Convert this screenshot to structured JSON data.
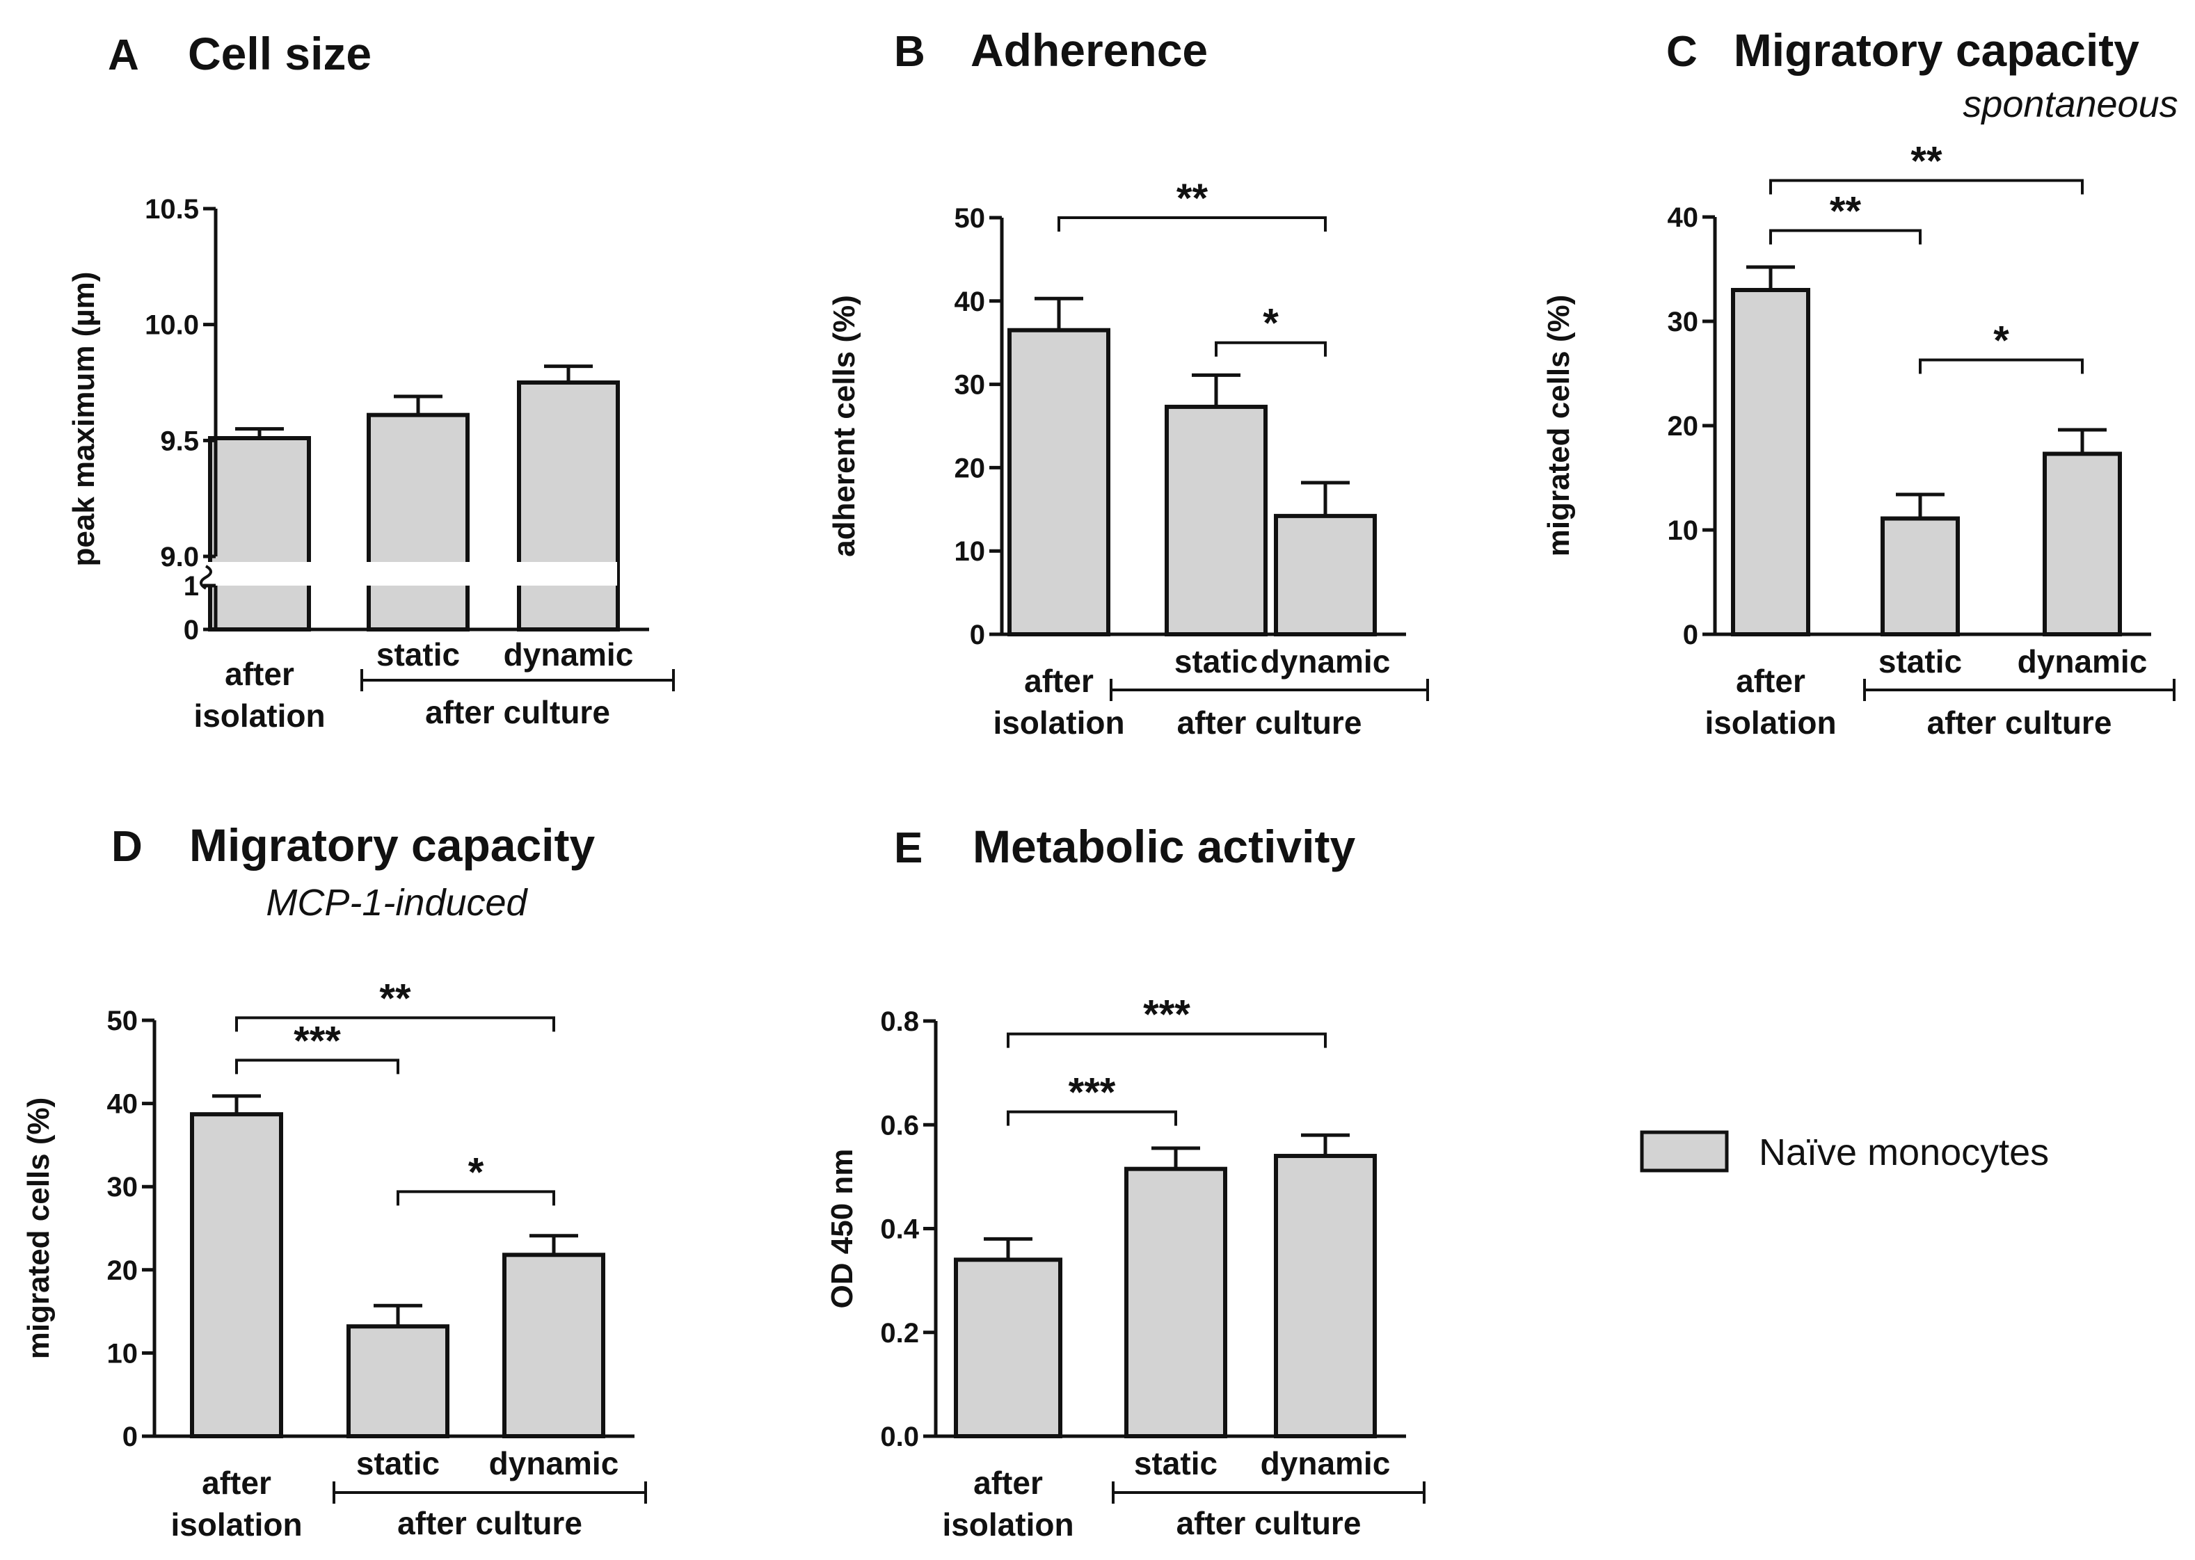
{
  "legend": {
    "label": "Naïve monocytes",
    "color": "#d3d3d3"
  },
  "colors": {
    "bar_fill": "#d3d3d3",
    "stroke": "#111111"
  },
  "chart_data": [
    {
      "type": "bar",
      "panel": "A",
      "title": "Cell size",
      "subtitle": "",
      "ylabel": "peak maximum (µm)",
      "ylim": [
        9.0,
        10.5
      ],
      "axis_break": true,
      "lower_ticks": [
        "0",
        "1"
      ],
      "yticks": [
        "9.0",
        "9.5",
        "10.0",
        "10.5"
      ],
      "ytick_values": [
        9.0,
        9.5,
        10.0,
        10.5
      ],
      "categories": [
        "after isolation",
        "static",
        "dynamic"
      ],
      "category_lines": [
        [
          "after",
          "isolation"
        ],
        [
          "static"
        ],
        [
          "dynamic"
        ]
      ],
      "group_label": "after culture",
      "values": [
        9.51,
        9.61,
        9.75
      ],
      "errors": [
        0.04,
        0.08,
        0.07
      ],
      "significance": []
    },
    {
      "type": "bar",
      "panel": "B",
      "title": "Adherence",
      "subtitle": "",
      "ylabel": "adherent cells (%)",
      "ylim": [
        0,
        50
      ],
      "yticks": [
        "0",
        "10",
        "20",
        "30",
        "40",
        "50"
      ],
      "ytick_values": [
        0,
        10,
        20,
        30,
        40,
        50
      ],
      "categories": [
        "after isolation",
        "static",
        "dynamic"
      ],
      "category_lines": [
        [
          "after",
          "isolation"
        ],
        [
          "static"
        ],
        [
          "dynamic"
        ]
      ],
      "group_label": "after culture",
      "values": [
        36.5,
        27.3,
        14.2
      ],
      "errors": [
        3.8,
        3.8,
        4.0
      ],
      "significance": [
        {
          "from": 0,
          "to": 2,
          "label": "**",
          "level": 50
        },
        {
          "from": 1,
          "to": 2,
          "label": "*",
          "level": 35
        }
      ]
    },
    {
      "type": "bar",
      "panel": "C",
      "title": "Migratory capacity",
      "subtitle": "spontaneous",
      "ylabel": "migrated cells (%)",
      "ylim": [
        0,
        40
      ],
      "yticks": [
        "0",
        "10",
        "20",
        "30",
        "40"
      ],
      "ytick_values": [
        0,
        10,
        20,
        30,
        40
      ],
      "categories": [
        "after isolation",
        "static",
        "dynamic"
      ],
      "category_lines": [
        [
          "after",
          "isolation"
        ],
        [
          "static"
        ],
        [
          "dynamic"
        ]
      ],
      "group_label": "after culture",
      "values": [
        33.0,
        11.1,
        17.3
      ],
      "errors": [
        2.2,
        2.3,
        2.3
      ],
      "significance": [
        {
          "from": 0,
          "to": 1,
          "label": "**",
          "level": 38.7
        },
        {
          "from": 0,
          "to": 2,
          "label": "**",
          "level": 43.5
        },
        {
          "from": 1,
          "to": 2,
          "label": "*",
          "level": 26.3
        }
      ]
    },
    {
      "type": "bar",
      "panel": "D",
      "title": "Migratory capacity",
      "subtitle": "MCP-1-induced",
      "ylabel": "migrated cells (%)",
      "ylim": [
        0,
        50
      ],
      "yticks": [
        "0",
        "10",
        "20",
        "30",
        "40",
        "50"
      ],
      "ytick_values": [
        0,
        10,
        20,
        30,
        40,
        50
      ],
      "categories": [
        "after isolation",
        "static",
        "dynamic"
      ],
      "category_lines": [
        [
          "after",
          "isolation"
        ],
        [
          "static"
        ],
        [
          "dynamic"
        ]
      ],
      "group_label": "after culture",
      "values": [
        38.7,
        13.2,
        21.8
      ],
      "errors": [
        2.2,
        2.5,
        2.3
      ],
      "significance": [
        {
          "from": 0,
          "to": 1,
          "label": "***",
          "level": 45.2
        },
        {
          "from": 0,
          "to": 2,
          "label": "**",
          "level": 50.3
        },
        {
          "from": 1,
          "to": 2,
          "label": "*",
          "level": 29.4
        }
      ]
    },
    {
      "type": "bar",
      "panel": "E",
      "title": "Metabolic activity",
      "subtitle": "",
      "ylabel": "OD 450 nm",
      "ylim": [
        0,
        0.8
      ],
      "yticks": [
        "0.0",
        "0.2",
        "0.4",
        "0.6",
        "0.8"
      ],
      "ytick_values": [
        0,
        0.2,
        0.4,
        0.6,
        0.8
      ],
      "categories": [
        "after isolation",
        "static",
        "dynamic"
      ],
      "category_lines": [
        [
          "after",
          "isolation"
        ],
        [
          "static"
        ],
        [
          "dynamic"
        ]
      ],
      "group_label": "after culture",
      "values": [
        0.34,
        0.515,
        0.54
      ],
      "errors": [
        0.04,
        0.04,
        0.04
      ],
      "significance": [
        {
          "from": 0,
          "to": 1,
          "label": "***",
          "level": 0.625
        },
        {
          "from": 0,
          "to": 2,
          "label": "***",
          "level": 0.775
        }
      ]
    }
  ]
}
